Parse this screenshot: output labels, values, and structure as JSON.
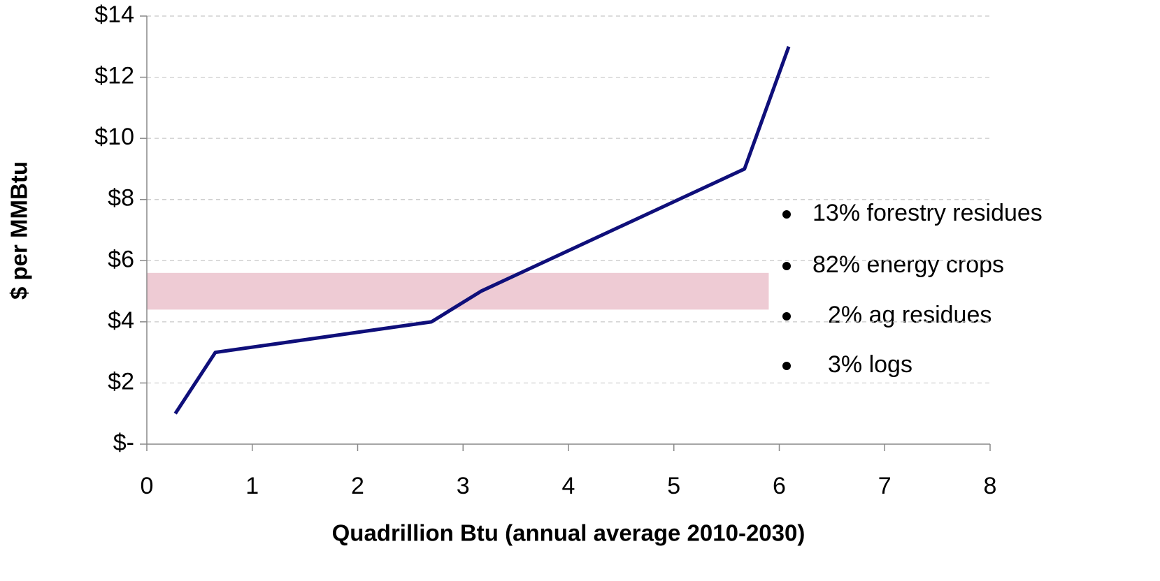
{
  "chart_data": {
    "type": "line",
    "x": [
      0.27,
      0.65,
      2.7,
      3.17,
      5.67,
      6.09
    ],
    "values": [
      1,
      3,
      4,
      5,
      9,
      13
    ],
    "color": "#0f0f7a",
    "xlim": [
      0,
      8
    ],
    "xticks": [
      0,
      1,
      2,
      3,
      4,
      5,
      6,
      7,
      8
    ],
    "ylim": [
      0,
      14
    ],
    "yticks": [
      {
        "value": 0,
        "label": "$-"
      },
      {
        "value": 2,
        "label": "$2"
      },
      {
        "value": 4,
        "label": "$4"
      },
      {
        "value": 6,
        "label": "$6"
      },
      {
        "value": 8,
        "label": "$8"
      },
      {
        "value": 10,
        "label": "$10"
      },
      {
        "value": 12,
        "label": "$12"
      },
      {
        "value": 14,
        "label": "$14"
      }
    ],
    "grid": true,
    "band": {
      "x": [
        0,
        5.9
      ],
      "y": [
        4.4,
        5.6
      ],
      "color": "#eecbd4"
    },
    "xlabel": "Quadrillion Btu (annual average 2010-2030)",
    "ylabel": "$ per MMBtu",
    "annotations": [
      "13% forestry residues",
      "82% energy crops",
      "2% ag residues",
      "3% logs"
    ]
  }
}
